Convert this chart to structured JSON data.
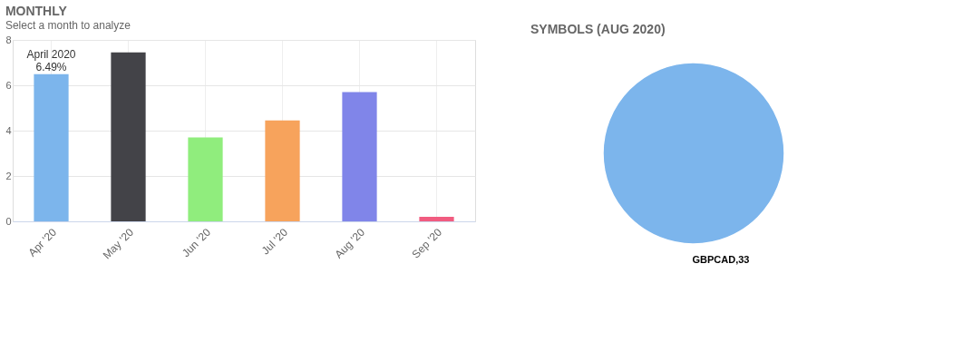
{
  "chart_data": [
    {
      "type": "bar",
      "title": "MONTHLY",
      "subtitle": "Select a month to analyze",
      "categories": [
        "Apr '20",
        "May '20",
        "Jun '20",
        "Jul '20",
        "Aug '20",
        "Sep '20"
      ],
      "values": [
        6.49,
        7.45,
        3.7,
        4.45,
        5.7,
        0.2
      ],
      "colors": [
        "#7cb5ec",
        "#434348",
        "#90ed7d",
        "#f7a35c",
        "#8085e9",
        "#f15c80"
      ],
      "ylim": [
        0,
        8
      ],
      "yticks": [
        0,
        2,
        4,
        6,
        8
      ],
      "grid": true,
      "annotations": [
        {
          "text": "April 2020\n6.49%",
          "x": "Apr '20",
          "y": 6.49
        }
      ]
    },
    {
      "type": "pie",
      "title": "SYMBOLS (AUG 2020)",
      "categories": [
        "GBPCAD,33"
      ],
      "values": [
        100
      ],
      "colors": [
        "#7cb5ec"
      ]
    }
  ]
}
